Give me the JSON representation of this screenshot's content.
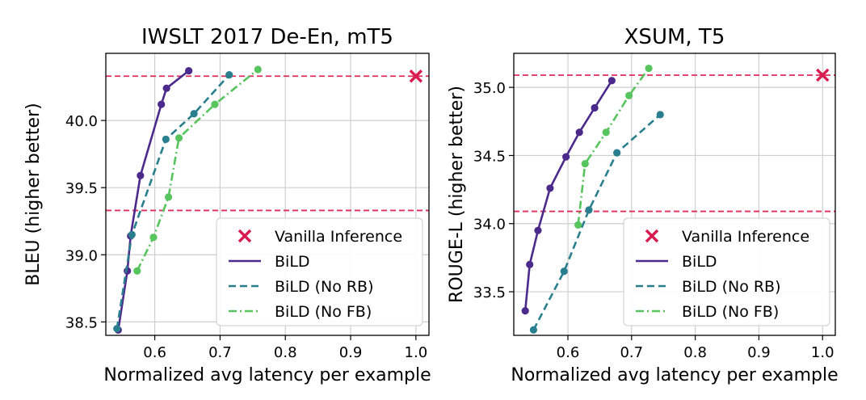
{
  "chart_data": [
    {
      "type": "line",
      "title": "IWSLT 2017 De-En, mT5",
      "xlabel": "Normalized avg latency per example",
      "ylabel": "BLEU (higher better)",
      "xlim": [
        0.525,
        1.02
      ],
      "ylim": [
        38.4,
        40.5
      ],
      "xticks": [
        0.6,
        0.7,
        0.8,
        0.9,
        1.0
      ],
      "xtick_labels": [
        "0.6",
        "0.7",
        "0.8",
        "0.9",
        "1.0"
      ],
      "yticks": [
        38.5,
        39.0,
        39.5,
        40.0
      ],
      "ytick_labels": [
        "38.5",
        "39.0",
        "39.5",
        "40.0"
      ],
      "grid": true,
      "hlines": [
        40.33,
        39.33
      ],
      "legend_position": "lower-right",
      "vanilla": {
        "name": "Vanilla Inference",
        "x": 1.0,
        "y": 40.33
      },
      "series": [
        {
          "name": "BiLD",
          "style": "solid",
          "x": [
            0.544,
            0.558,
            0.563,
            0.578,
            0.61,
            0.618,
            0.652
          ],
          "y": [
            38.44,
            38.88,
            39.14,
            39.59,
            40.12,
            40.24,
            40.37
          ]
        },
        {
          "name": "BiLD (No RB)",
          "style": "dashed",
          "x": [
            0.542,
            0.565,
            0.617,
            0.66,
            0.714
          ],
          "y": [
            38.45,
            39.15,
            39.86,
            40.05,
            40.34
          ]
        },
        {
          "name": "BiLD (No FB)",
          "style": "dashdot",
          "x": [
            0.573,
            0.598,
            0.621,
            0.637,
            0.692,
            0.758
          ],
          "y": [
            38.88,
            39.13,
            39.43,
            39.87,
            40.12,
            40.38
          ]
        }
      ]
    },
    {
      "type": "line",
      "title": "XSUM, T5",
      "xlabel": "Normalized avg latency per example",
      "ylabel": "ROUGE-L (higher better)",
      "xlim": [
        0.515,
        1.02
      ],
      "ylim": [
        33.18,
        35.25
      ],
      "xticks": [
        0.6,
        0.7,
        0.8,
        0.9,
        1.0
      ],
      "xtick_labels": [
        "0.6",
        "0.7",
        "0.8",
        "0.9",
        "1.0"
      ],
      "yticks": [
        33.5,
        34.0,
        34.5,
        35.0
      ],
      "ytick_labels": [
        "33.5",
        "34.0",
        "34.5",
        "35.0"
      ],
      "grid": true,
      "hlines": [
        35.09,
        34.09
      ],
      "legend_position": "lower-right",
      "vanilla": {
        "name": "Vanilla Inference",
        "x": 1.0,
        "y": 35.09
      },
      "series": [
        {
          "name": "BiLD",
          "style": "solid",
          "x": [
            0.533,
            0.54,
            0.553,
            0.572,
            0.597,
            0.618,
            0.642,
            0.669
          ],
          "y": [
            33.36,
            33.7,
            33.95,
            34.26,
            34.49,
            34.67,
            34.85,
            35.05
          ]
        },
        {
          "name": "BiLD (No RB)",
          "style": "dashed",
          "x": [
            0.546,
            0.594,
            0.633,
            0.677,
            0.745
          ],
          "y": [
            33.22,
            33.65,
            34.1,
            34.52,
            34.8
          ]
        },
        {
          "name": "BiLD (No FB)",
          "style": "dashdot",
          "x": [
            0.616,
            0.627,
            0.66,
            0.696,
            0.727
          ],
          "y": [
            33.99,
            34.44,
            34.67,
            34.94,
            35.14
          ]
        }
      ]
    }
  ],
  "colors": {
    "bild": "#4b2a8c",
    "no_rb": "#2a7f8e",
    "no_fb": "#57c45e",
    "vanilla": "#d81b50",
    "hline": "#e02c5a",
    "grid": "#cfcfcf"
  }
}
